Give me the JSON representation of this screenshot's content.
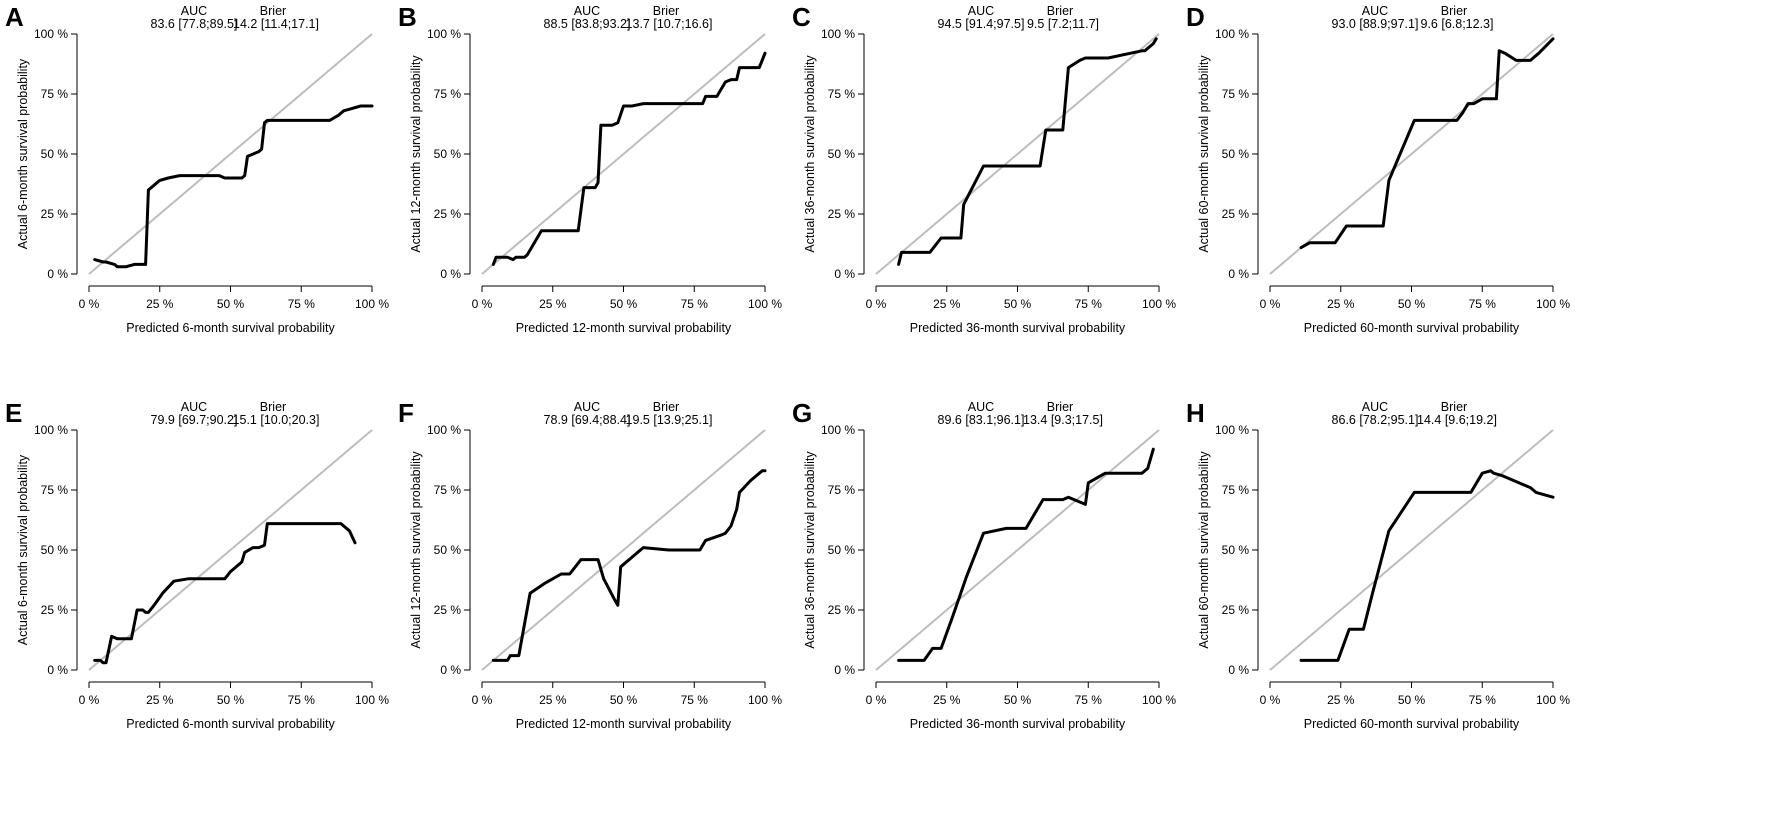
{
  "chart_data": [
    {
      "panel": "A",
      "type": "line",
      "xlabel": "Predicted 6-month survival probability",
      "ylabel": "Actual 6-month survival probability",
      "xlim": [
        0,
        100
      ],
      "ylim": [
        0,
        100
      ],
      "ticks": [
        "0 %",
        "25 %",
        "50 %",
        "75 %",
        "100 %"
      ],
      "reference_line": "diagonal",
      "metrics": {
        "auc_header": "AUC",
        "auc_value": "83.6 [77.8;89.5]",
        "brier_header": "Brier",
        "brier_value": "14.2 [11.4;17.1]"
      },
      "series": [
        {
          "name": "calibration",
          "x": [
            2,
            5,
            6,
            9,
            10,
            12,
            13,
            16,
            18,
            20,
            21,
            23,
            25,
            28,
            32,
            40,
            46,
            48,
            50,
            52,
            54,
            55,
            56,
            58,
            60,
            61,
            62,
            63,
            65,
            70,
            75,
            80,
            85,
            88,
            90,
            93,
            96,
            100
          ],
          "y": [
            6,
            5,
            5,
            4,
            3,
            3,
            3,
            4,
            4,
            4,
            35,
            37,
            39,
            40,
            41,
            41,
            41,
            40,
            40,
            40,
            40,
            41,
            49,
            50,
            51,
            52,
            63,
            64,
            64,
            64,
            64,
            64,
            64,
            66,
            68,
            69,
            70,
            70
          ]
        }
      ]
    },
    {
      "panel": "B",
      "type": "line",
      "xlabel": "Predicted 12-month survival probability",
      "ylabel": "Actual 12-month survival probability",
      "xlim": [
        0,
        100
      ],
      "ylim": [
        0,
        100
      ],
      "ticks": [
        "0 %",
        "25 %",
        "50 %",
        "75 %",
        "100 %"
      ],
      "reference_line": "diagonal",
      "metrics": {
        "auc_header": "AUC",
        "auc_value": "88.5 [83.8;93.2]",
        "brier_header": "Brier",
        "brier_value": "13.7 [10.7;16.6]"
      },
      "series": [
        {
          "name": "calibration",
          "x": [
            4,
            5,
            7,
            9,
            11,
            12,
            15,
            16,
            21,
            34,
            36,
            40,
            41,
            42,
            44,
            46,
            48,
            50,
            53,
            57,
            62,
            78,
            79,
            82,
            83,
            86,
            88,
            90,
            91,
            95,
            98,
            100
          ],
          "y": [
            4,
            7,
            7,
            7,
            6,
            7,
            7,
            8,
            18,
            18,
            36,
            36,
            38,
            62,
            62,
            62,
            63,
            70,
            70,
            71,
            71,
            71,
            74,
            74,
            74,
            80,
            81,
            81,
            86,
            86,
            86,
            92
          ]
        }
      ]
    },
    {
      "panel": "C",
      "type": "line",
      "xlabel": "Predicted 36-month survival probability",
      "ylabel": "Actual 36-month survival probability",
      "xlim": [
        0,
        100
      ],
      "ylim": [
        0,
        100
      ],
      "ticks": [
        "0 %",
        "25 %",
        "50 %",
        "75 %",
        "100 %"
      ],
      "reference_line": "diagonal",
      "metrics": {
        "auc_header": "AUC",
        "auc_value": "94.5 [91.4;97.5]",
        "brier_header": "Brier",
        "brier_value": "9.5 [7.2;11.7]"
      },
      "series": [
        {
          "name": "calibration",
          "x": [
            8,
            9,
            14,
            19,
            23,
            25,
            30,
            31,
            38,
            50,
            58,
            60,
            66,
            68,
            72,
            74,
            82,
            90,
            94,
            95,
            98,
            99
          ],
          "y": [
            4,
            9,
            9,
            9,
            15,
            15,
            15,
            29,
            45,
            45,
            45,
            60,
            60,
            86,
            89,
            90,
            90,
            92,
            93,
            93,
            96,
            98
          ]
        }
      ]
    },
    {
      "panel": "D",
      "type": "line",
      "xlabel": "Predicted 60-month survival probability",
      "ylabel": "Actual 60-month survival probability",
      "xlim": [
        0,
        100
      ],
      "ylim": [
        0,
        100
      ],
      "ticks": [
        "0 %",
        "25 %",
        "50 %",
        "75 %",
        "100 %"
      ],
      "reference_line": "diagonal",
      "metrics": {
        "auc_header": "AUC",
        "auc_value": "93.0 [88.9;97.1]",
        "brier_header": "Brier",
        "brier_value": "9.6 [6.8;12.3]"
      },
      "series": [
        {
          "name": "calibration",
          "x": [
            11,
            14,
            23,
            27,
            33,
            40,
            42,
            51,
            57,
            66,
            68,
            70,
            72,
            75,
            77,
            80,
            81,
            83,
            87,
            92,
            95,
            100
          ],
          "y": [
            11,
            13,
            13,
            20,
            20,
            20,
            39,
            64,
            64,
            64,
            67,
            71,
            71,
            73,
            73,
            73,
            93,
            92,
            89,
            89,
            92,
            98
          ]
        }
      ]
    },
    {
      "panel": "E",
      "type": "line",
      "xlabel": "Predicted 6-month survival probability",
      "ylabel": "Actual 6-month survival probability",
      "xlim": [
        0,
        100
      ],
      "ylim": [
        0,
        100
      ],
      "ticks": [
        "0 %",
        "25 %",
        "50 %",
        "75 %",
        "100 %"
      ],
      "reference_line": "diagonal",
      "metrics": {
        "auc_header": "AUC",
        "auc_value": "79.9 [69.7;90.2]",
        "brier_header": "Brier",
        "brier_value": "15.1 [10.0;20.3]"
      },
      "series": [
        {
          "name": "calibration",
          "x": [
            2,
            4,
            5,
            6,
            8,
            10,
            12,
            15,
            17,
            19,
            20,
            21,
            23,
            26,
            30,
            35,
            40,
            48,
            50,
            54,
            55,
            58,
            60,
            62,
            63,
            70,
            80,
            89,
            92,
            94
          ],
          "y": [
            4,
            4,
            3,
            3,
            14,
            13,
            13,
            13,
            25,
            25,
            24,
            24,
            27,
            32,
            37,
            38,
            38,
            38,
            41,
            45,
            49,
            51,
            51,
            52,
            61,
            61,
            61,
            61,
            58,
            53
          ]
        }
      ]
    },
    {
      "panel": "F",
      "type": "line",
      "xlabel": "Predicted 12-month survival probability",
      "ylabel": "Actual 12-month survival probability",
      "xlim": [
        0,
        100
      ],
      "ylim": [
        0,
        100
      ],
      "ticks": [
        "0 %",
        "25 %",
        "50 %",
        "75 %",
        "100 %"
      ],
      "reference_line": "diagonal",
      "metrics": {
        "auc_header": "AUC",
        "auc_value": "78.9 [69.4;88.4]",
        "brier_header": "Brier",
        "brier_value": "19.5 [13.9;25.1]"
      },
      "series": [
        {
          "name": "calibration",
          "x": [
            4,
            9,
            10,
            13,
            17,
            22,
            28,
            31,
            35,
            41,
            43,
            47,
            48,
            49,
            57,
            66,
            77,
            79,
            84,
            86,
            88,
            90,
            91,
            95,
            99,
            100
          ],
          "y": [
            4,
            4,
            6,
            6,
            32,
            36,
            40,
            40,
            46,
            46,
            38,
            29,
            27,
            43,
            51,
            50,
            50,
            54,
            56,
            57,
            60,
            67,
            74,
            79,
            83,
            83
          ]
        }
      ]
    },
    {
      "panel": "G",
      "type": "line",
      "xlabel": "Predicted 36-month survival probability",
      "ylabel": "Actual 36-month survival probability",
      "xlim": [
        0,
        100
      ],
      "ylim": [
        0,
        100
      ],
      "ticks": [
        "0 %",
        "25 %",
        "50 %",
        "75 %",
        "100 %"
      ],
      "reference_line": "diagonal",
      "metrics": {
        "auc_header": "AUC",
        "auc_value": "89.6 [83.1;96.1]",
        "brier_header": "Brier",
        "brier_value": "13.4 [9.3;17.5]"
      },
      "series": [
        {
          "name": "calibration",
          "x": [
            8,
            17,
            20,
            23,
            27,
            32,
            38,
            46,
            53,
            59,
            66,
            68,
            74,
            75,
            81,
            88,
            94,
            96,
            98
          ],
          "y": [
            4,
            4,
            9,
            9,
            22,
            39,
            57,
            59,
            59,
            71,
            71,
            72,
            69,
            78,
            82,
            82,
            82,
            84,
            92
          ]
        }
      ]
    },
    {
      "panel": "H",
      "type": "line",
      "xlabel": "Predicted 60-month survival probability",
      "ylabel": "Actual 60-month survival probability",
      "xlim": [
        0,
        100
      ],
      "ylim": [
        0,
        100
      ],
      "ticks": [
        "0 %",
        "25 %",
        "50 %",
        "75 %",
        "100 %"
      ],
      "reference_line": "diagonal",
      "metrics": {
        "auc_header": "AUC",
        "auc_value": "86.6 [78.2;95.1]",
        "brier_header": "Brier",
        "brier_value": "14.4 [9.6;19.2]"
      },
      "series": [
        {
          "name": "calibration",
          "x": [
            11,
            24,
            28,
            30,
            33,
            36,
            42,
            51,
            60,
            67,
            71,
            75,
            78,
            79,
            82,
            90,
            92,
            94,
            100
          ],
          "y": [
            4,
            4,
            17,
            17,
            17,
            31,
            58,
            74,
            74,
            74,
            74,
            82,
            83,
            82,
            81,
            77,
            76,
            74,
            72
          ]
        }
      ]
    }
  ]
}
